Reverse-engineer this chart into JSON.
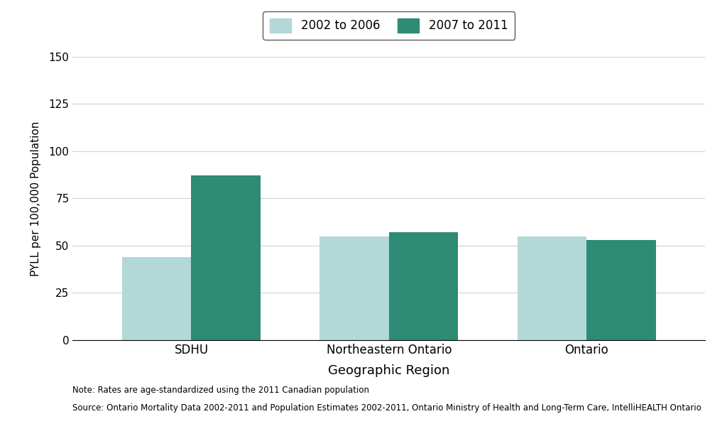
{
  "categories": [
    "SDHU",
    "Northeastern Ontario",
    "Ontario"
  ],
  "series": [
    {
      "label": "2002 to 2006",
      "values": [
        44,
        55,
        55
      ],
      "color": "#b2d8d8"
    },
    {
      "label": "2007 to 2011",
      "values": [
        87,
        57,
        53
      ],
      "color": "#2e8b74"
    }
  ],
  "ylabel": "PYLL per 100,000 Population",
  "xlabel": "Geographic Region",
  "ylim": [
    0,
    150
  ],
  "yticks": [
    0,
    25,
    50,
    75,
    100,
    125,
    150
  ],
  "background_color": "#ffffff",
  "grid_color": "#d0d0d0",
  "note_line1": "Note: Rates are age-standardized using the 2011 Canadian population",
  "note_line2": "Source: Ontario Mortality Data 2002-2011 and Population Estimates 2002-2011, Ontario Ministry of Health and Long-Term Care, IntelliHEALTH Ontario",
  "bar_width": 0.35
}
